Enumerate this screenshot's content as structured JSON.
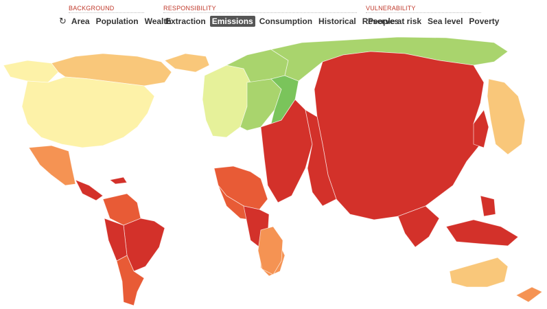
{
  "toolbar": {
    "background": {
      "title": "BACKGROUND",
      "refresh_icon": "refresh-icon",
      "items": [
        "Area",
        "Population",
        "Wealth"
      ]
    },
    "responsibility": {
      "title": "RESPONSIBILITY",
      "items": [
        "Extraction",
        "Emissions",
        "Consumption",
        "Historical",
        "Reserves"
      ],
      "active": "Emissions"
    },
    "vulnerability": {
      "title": "VULNERABILITY",
      "items": [
        "People at risk",
        "Sea level",
        "Poverty"
      ]
    }
  },
  "map": {
    "palette": {
      "very_high": "#d3312a",
      "high": "#e85b36",
      "medium_high": "#f59353",
      "medium": "#f9c77a",
      "low": "#fdf2a8",
      "very_low": "#e6f19a",
      "negative_low": "#a9d46d",
      "negative": "#7ac45b",
      "negative_high": "#4dae4e"
    }
  }
}
